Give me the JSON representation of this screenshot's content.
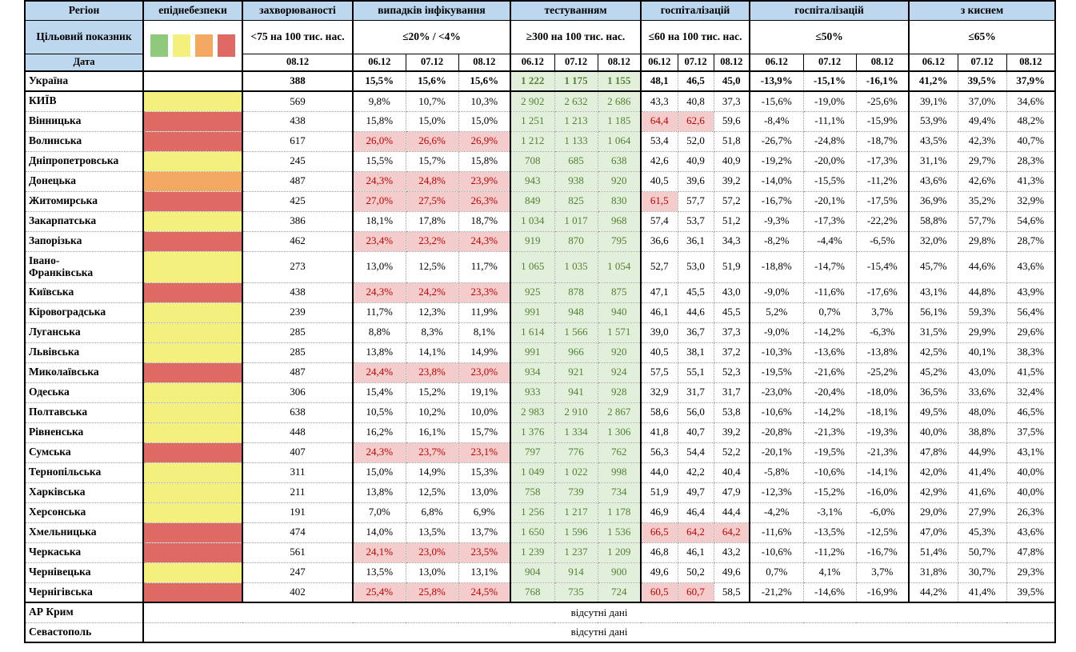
{
  "labels": {
    "target_row": "Цільовий показник",
    "date_row": "Дата",
    "no_data": "відсутні дані"
  },
  "dates": [
    "06.12",
    "07.12",
    "08.12"
  ],
  "colors": {
    "header_fill": "#BDD7EE",
    "danger_levels": {
      "green": "#8FCA7C",
      "yellow": "#F4F07E",
      "orange": "#F4A962",
      "red": "#DE6A63"
    },
    "alert_fill": "#F4CCCC",
    "alert_text": "#C00000",
    "testing_fill": "#E2EFDA",
    "testing_text": "#538135"
  },
  "cols": {
    "region": {
      "title": "Регіон"
    },
    "danger": {
      "title": "епіднебезпеки",
      "legend": [
        "green",
        "yellow",
        "orange",
        "red"
      ]
    },
    "incidence": {
      "title": "захворюваності",
      "target": "<75 на 100 тис. нас.",
      "dates": [
        "08.12"
      ]
    },
    "infection": {
      "title": "випадків інфікування",
      "target": "≤20% / <4%"
    },
    "testing": {
      "title": "тестуванням",
      "target": "≥300 на 100 тис. нас."
    },
    "hospitalization": {
      "title": "госпіталізацій",
      "target": "≤60 на 100 тис. нас."
    },
    "hosp_dynamics": {
      "title": "госпіталізацій",
      "target": "≤50%"
    },
    "oxygen": {
      "title": "з киснем",
      "target": "≤65%"
    }
  },
  "rows": [
    {
      "region": "Україна",
      "bold": true,
      "thick_bottom": true,
      "danger": null,
      "incidence": "388",
      "infection": [
        "15,5%",
        "15,6%",
        "15,6%"
      ],
      "inf_alert": false,
      "testing": [
        "1 222",
        "1 175",
        "1 155"
      ],
      "hosp": [
        "48,1",
        "46,5",
        "45,0"
      ],
      "dyn": [
        "-13,9%",
        "-15,1%",
        "-16,1%"
      ],
      "oxygen": [
        "41,2%",
        "39,5%",
        "37,9%"
      ]
    },
    {
      "region": "КИЇВ",
      "danger": "yellow",
      "incidence": "569",
      "infection": [
        "9,8%",
        "10,7%",
        "10,3%"
      ],
      "inf_alert": false,
      "testing": [
        "2 902",
        "2 632",
        "2 686"
      ],
      "hosp": [
        "43,3",
        "40,8",
        "37,3"
      ],
      "dyn": [
        "-15,6%",
        "-19,0%",
        "-25,6%"
      ],
      "oxygen": [
        "39,1%",
        "37,0%",
        "34,6%"
      ]
    },
    {
      "region": "Вінницька",
      "danger": "red",
      "incidence": "438",
      "infection": [
        "15,8%",
        "15,0%",
        "15,0%"
      ],
      "inf_alert": false,
      "testing": [
        "1 251",
        "1 213",
        "1 185"
      ],
      "hosp": [
        "64,4",
        "62,6",
        "59,6"
      ],
      "hosp_alert": [
        true,
        true,
        false
      ],
      "dyn": [
        "-8,4%",
        "-11,1%",
        "-15,9%"
      ],
      "oxygen": [
        "53,9%",
        "49,4%",
        "48,2%"
      ]
    },
    {
      "region": "Волинська",
      "danger": "red",
      "incidence": "617",
      "infection": [
        "26,0%",
        "26,6%",
        "26,9%"
      ],
      "inf_alert": true,
      "testing": [
        "1 212",
        "1 133",
        "1 064"
      ],
      "hosp": [
        "53,4",
        "52,0",
        "51,8"
      ],
      "dyn": [
        "-26,7%",
        "-24,8%",
        "-18,7%"
      ],
      "oxygen": [
        "43,5%",
        "42,3%",
        "40,7%"
      ]
    },
    {
      "region": "Дніпропетровська",
      "danger": "yellow",
      "incidence": "245",
      "infection": [
        "15,5%",
        "15,7%",
        "15,8%"
      ],
      "inf_alert": false,
      "testing": [
        "708",
        "685",
        "638"
      ],
      "hosp": [
        "42,6",
        "40,9",
        "40,9"
      ],
      "dyn": [
        "-19,2%",
        "-20,0%",
        "-17,3%"
      ],
      "oxygen": [
        "31,1%",
        "29,7%",
        "28,3%"
      ]
    },
    {
      "region": "Донецька",
      "danger": "orange",
      "incidence": "487",
      "infection": [
        "24,3%",
        "24,8%",
        "23,9%"
      ],
      "inf_alert": true,
      "testing": [
        "943",
        "938",
        "920"
      ],
      "hosp": [
        "40,5",
        "39,6",
        "39,2"
      ],
      "dyn": [
        "-14,0%",
        "-15,5%",
        "-11,2%"
      ],
      "oxygen": [
        "43,6%",
        "42,6%",
        "41,3%"
      ]
    },
    {
      "region": "Житомирська",
      "danger": "red",
      "incidence": "425",
      "infection": [
        "27,0%",
        "27,5%",
        "26,3%"
      ],
      "inf_alert": true,
      "testing": [
        "849",
        "825",
        "830"
      ],
      "hosp": [
        "61,5",
        "57,7",
        "57,2"
      ],
      "hosp_alert": [
        true,
        false,
        false
      ],
      "dyn": [
        "-16,7%",
        "-20,1%",
        "-17,5%"
      ],
      "oxygen": [
        "36,9%",
        "35,2%",
        "32,9%"
      ]
    },
    {
      "region": "Закарпатська",
      "danger": "yellow",
      "incidence": "386",
      "infection": [
        "18,1%",
        "17,8%",
        "18,7%"
      ],
      "inf_alert": false,
      "testing": [
        "1 034",
        "1 017",
        "968"
      ],
      "hosp": [
        "57,4",
        "53,7",
        "51,2"
      ],
      "dyn": [
        "-9,3%",
        "-17,3%",
        "-22,2%"
      ],
      "oxygen": [
        "58,8%",
        "57,7%",
        "54,6%"
      ]
    },
    {
      "region": "Запорізька",
      "danger": "red",
      "incidence": "462",
      "infection": [
        "23,4%",
        "23,2%",
        "24,3%"
      ],
      "inf_alert": true,
      "testing": [
        "919",
        "870",
        "795"
      ],
      "hosp": [
        "36,6",
        "36,1",
        "34,3"
      ],
      "dyn": [
        "-8,2%",
        "-4,4%",
        "-6,5%"
      ],
      "oxygen": [
        "32,0%",
        "29,8%",
        "28,7%"
      ]
    },
    {
      "region": "Івано-\nФранківська",
      "double": true,
      "danger": "yellow",
      "incidence": "273",
      "infection": [
        "13,0%",
        "12,5%",
        "11,7%"
      ],
      "inf_alert": false,
      "testing": [
        "1 065",
        "1 035",
        "1 054"
      ],
      "hosp": [
        "52,7",
        "53,0",
        "51,9"
      ],
      "dyn": [
        "-18,8%",
        "-14,7%",
        "-15,4%"
      ],
      "oxygen": [
        "45,7%",
        "44,6%",
        "43,6%"
      ]
    },
    {
      "region": "Київська",
      "danger": "red",
      "incidence": "438",
      "infection": [
        "24,3%",
        "24,2%",
        "23,3%"
      ],
      "inf_alert": true,
      "testing": [
        "925",
        "878",
        "875"
      ],
      "hosp": [
        "47,1",
        "45,5",
        "43,0"
      ],
      "dyn": [
        "-9,0%",
        "-11,6%",
        "-17,6%"
      ],
      "oxygen": [
        "43,1%",
        "44,8%",
        "43,9%"
      ]
    },
    {
      "region": "Кіровоградська",
      "danger": "yellow",
      "incidence": "239",
      "infection": [
        "11,7%",
        "12,3%",
        "11,9%"
      ],
      "inf_alert": false,
      "testing": [
        "991",
        "948",
        "940"
      ],
      "hosp": [
        "46,1",
        "44,6",
        "45,5"
      ],
      "dyn": [
        "5,2%",
        "0,7%",
        "3,7%"
      ],
      "oxygen": [
        "56,1%",
        "59,3%",
        "56,4%"
      ]
    },
    {
      "region": "Луганська",
      "danger": "yellow",
      "incidence": "285",
      "infection": [
        "8,8%",
        "8,3%",
        "8,1%"
      ],
      "inf_alert": false,
      "testing": [
        "1 614",
        "1 566",
        "1 571"
      ],
      "hosp": [
        "39,0",
        "36,7",
        "37,3"
      ],
      "dyn": [
        "-9,0%",
        "-14,2%",
        "-6,3%"
      ],
      "oxygen": [
        "31,5%",
        "29,9%",
        "29,6%"
      ]
    },
    {
      "region": "Львівська",
      "danger": "yellow",
      "incidence": "285",
      "infection": [
        "13,8%",
        "14,1%",
        "14,9%"
      ],
      "inf_alert": false,
      "testing": [
        "991",
        "966",
        "920"
      ],
      "hosp": [
        "40,5",
        "38,1",
        "37,2"
      ],
      "dyn": [
        "-10,3%",
        "-13,6%",
        "-13,8%"
      ],
      "oxygen": [
        "42,5%",
        "40,1%",
        "38,3%"
      ]
    },
    {
      "region": "Миколаївська",
      "danger": "red",
      "incidence": "487",
      "infection": [
        "24,4%",
        "23,8%",
        "23,0%"
      ],
      "inf_alert": true,
      "testing": [
        "934",
        "921",
        "924"
      ],
      "hosp": [
        "57,5",
        "55,1",
        "52,3"
      ],
      "dyn": [
        "-19,5%",
        "-21,6%",
        "-25,2%"
      ],
      "oxygen": [
        "45,2%",
        "43,0%",
        "41,5%"
      ]
    },
    {
      "region": "Одеська",
      "danger": "yellow",
      "incidence": "306",
      "infection": [
        "15,4%",
        "15,2%",
        "19,1%"
      ],
      "inf_alert": false,
      "testing": [
        "933",
        "941",
        "928"
      ],
      "hosp": [
        "32,9",
        "31,7",
        "31,7"
      ],
      "dyn": [
        "-23,0%",
        "-20,4%",
        "-18,0%"
      ],
      "oxygen": [
        "36,5%",
        "33,6%",
        "32,4%"
      ]
    },
    {
      "region": "Полтавська",
      "danger": "yellow",
      "incidence": "638",
      "infection": [
        "10,5%",
        "10,2%",
        "10,0%"
      ],
      "inf_alert": false,
      "testing": [
        "2 983",
        "2 910",
        "2 867"
      ],
      "hosp": [
        "58,6",
        "56,0",
        "53,8"
      ],
      "dyn": [
        "-10,6%",
        "-14,2%",
        "-18,1%"
      ],
      "oxygen": [
        "49,5%",
        "48,0%",
        "46,5%"
      ]
    },
    {
      "region": "Рівненська",
      "danger": "yellow",
      "incidence": "448",
      "infection": [
        "16,2%",
        "16,1%",
        "15,7%"
      ],
      "inf_alert": false,
      "testing": [
        "1 376",
        "1 334",
        "1 306"
      ],
      "hosp": [
        "41,8",
        "40,7",
        "39,2"
      ],
      "dyn": [
        "-20,8%",
        "-21,3%",
        "-19,3%"
      ],
      "oxygen": [
        "40,0%",
        "38,8%",
        "37,5%"
      ]
    },
    {
      "region": "Сумська",
      "danger": "red",
      "incidence": "407",
      "infection": [
        "24,3%",
        "23,7%",
        "23,1%"
      ],
      "inf_alert": true,
      "testing": [
        "797",
        "776",
        "762"
      ],
      "hosp": [
        "56,3",
        "54,4",
        "52,2"
      ],
      "dyn": [
        "-20,1%",
        "-19,5%",
        "-21,3%"
      ],
      "oxygen": [
        "47,8%",
        "44,9%",
        "43,1%"
      ]
    },
    {
      "region": "Тернопільська",
      "danger": "yellow",
      "incidence": "311",
      "infection": [
        "15,0%",
        "14,9%",
        "15,3%"
      ],
      "inf_alert": false,
      "testing": [
        "1 049",
        "1 022",
        "998"
      ],
      "hosp": [
        "44,0",
        "42,2",
        "40,4"
      ],
      "dyn": [
        "-5,8%",
        "-10,6%",
        "-14,1%"
      ],
      "oxygen": [
        "42,0%",
        "41,4%",
        "40,0%"
      ]
    },
    {
      "region": "Харківська",
      "danger": "yellow",
      "incidence": "211",
      "infection": [
        "13,8%",
        "12,5%",
        "13,0%"
      ],
      "inf_alert": false,
      "testing": [
        "758",
        "739",
        "734"
      ],
      "hosp": [
        "51,9",
        "49,7",
        "47,9"
      ],
      "dyn": [
        "-12,3%",
        "-15,2%",
        "-16,0%"
      ],
      "oxygen": [
        "42,9%",
        "41,6%",
        "40,0%"
      ]
    },
    {
      "region": "Херсонська",
      "danger": "yellow",
      "incidence": "191",
      "infection": [
        "7,0%",
        "6,8%",
        "6,9%"
      ],
      "inf_alert": false,
      "testing": [
        "1 256",
        "1 217",
        "1 178"
      ],
      "hosp": [
        "46,9",
        "46,4",
        "44,4"
      ],
      "dyn": [
        "-4,2%",
        "-3,1%",
        "-6,0%"
      ],
      "oxygen": [
        "29,0%",
        "27,9%",
        "26,3%"
      ]
    },
    {
      "region": "Хмельницька",
      "danger": "red",
      "incidence": "474",
      "infection": [
        "14,0%",
        "13,5%",
        "13,7%"
      ],
      "inf_alert": false,
      "testing": [
        "1 650",
        "1 596",
        "1 536"
      ],
      "hosp": [
        "66,5",
        "64,2",
        "64,2"
      ],
      "hosp_alert": [
        true,
        true,
        true
      ],
      "dyn": [
        "-11,6%",
        "-13,5%",
        "-12,5%"
      ],
      "oxygen": [
        "47,0%",
        "45,3%",
        "43,6%"
      ]
    },
    {
      "region": "Черкаська",
      "danger": "red",
      "incidence": "561",
      "infection": [
        "24,1%",
        "23,0%",
        "23,5%"
      ],
      "inf_alert": true,
      "testing": [
        "1 239",
        "1 237",
        "1 209"
      ],
      "hosp": [
        "46,8",
        "46,1",
        "43,2"
      ],
      "dyn": [
        "-10,6%",
        "-11,2%",
        "-16,7%"
      ],
      "oxygen": [
        "51,4%",
        "50,7%",
        "47,8%"
      ]
    },
    {
      "region": "Чернівецька",
      "danger": "yellow",
      "incidence": "247",
      "infection": [
        "13,5%",
        "13,0%",
        "13,1%"
      ],
      "inf_alert": false,
      "testing": [
        "904",
        "914",
        "900"
      ],
      "hosp": [
        "49,6",
        "50,2",
        "49,6"
      ],
      "dyn": [
        "0,7%",
        "4,1%",
        "3,7%"
      ],
      "oxygen": [
        "31,8%",
        "30,7%",
        "29,3%"
      ]
    },
    {
      "region": "Чернігівська",
      "danger": "red",
      "thick_bottom": true,
      "incidence": "402",
      "infection": [
        "25,4%",
        "25,8%",
        "24,5%"
      ],
      "inf_alert": true,
      "testing": [
        "768",
        "735",
        "724"
      ],
      "hosp": [
        "60,5",
        "60,7",
        "58,5"
      ],
      "hosp_alert": [
        true,
        true,
        false
      ],
      "dyn": [
        "-21,2%",
        "-14,6%",
        "-16,9%"
      ],
      "oxygen": [
        "44,2%",
        "41,4%",
        "39,5%"
      ]
    }
  ],
  "no_data": [
    {
      "region": "АР Крим",
      "text": "відсутні дані"
    },
    {
      "region": "Севастополь",
      "text": "відсутні дані"
    }
  ]
}
